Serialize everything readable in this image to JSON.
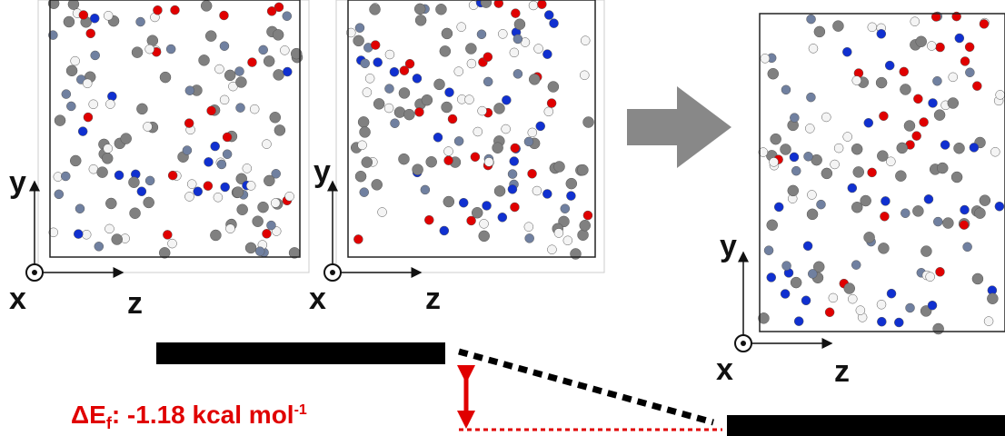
{
  "panels": [
    {
      "axes": {
        "y": "y",
        "x": "x",
        "z": "z"
      }
    },
    {
      "axes": {
        "y": "y",
        "x": "x",
        "z": "z"
      }
    },
    {
      "axes": {
        "y": "y",
        "x": "x",
        "z": "z"
      }
    }
  ],
  "energy_label": {
    "symbol": "ΔE",
    "subscript": "f",
    "text": ": -1.18 kcal mol",
    "superscript": "-1"
  }
}
